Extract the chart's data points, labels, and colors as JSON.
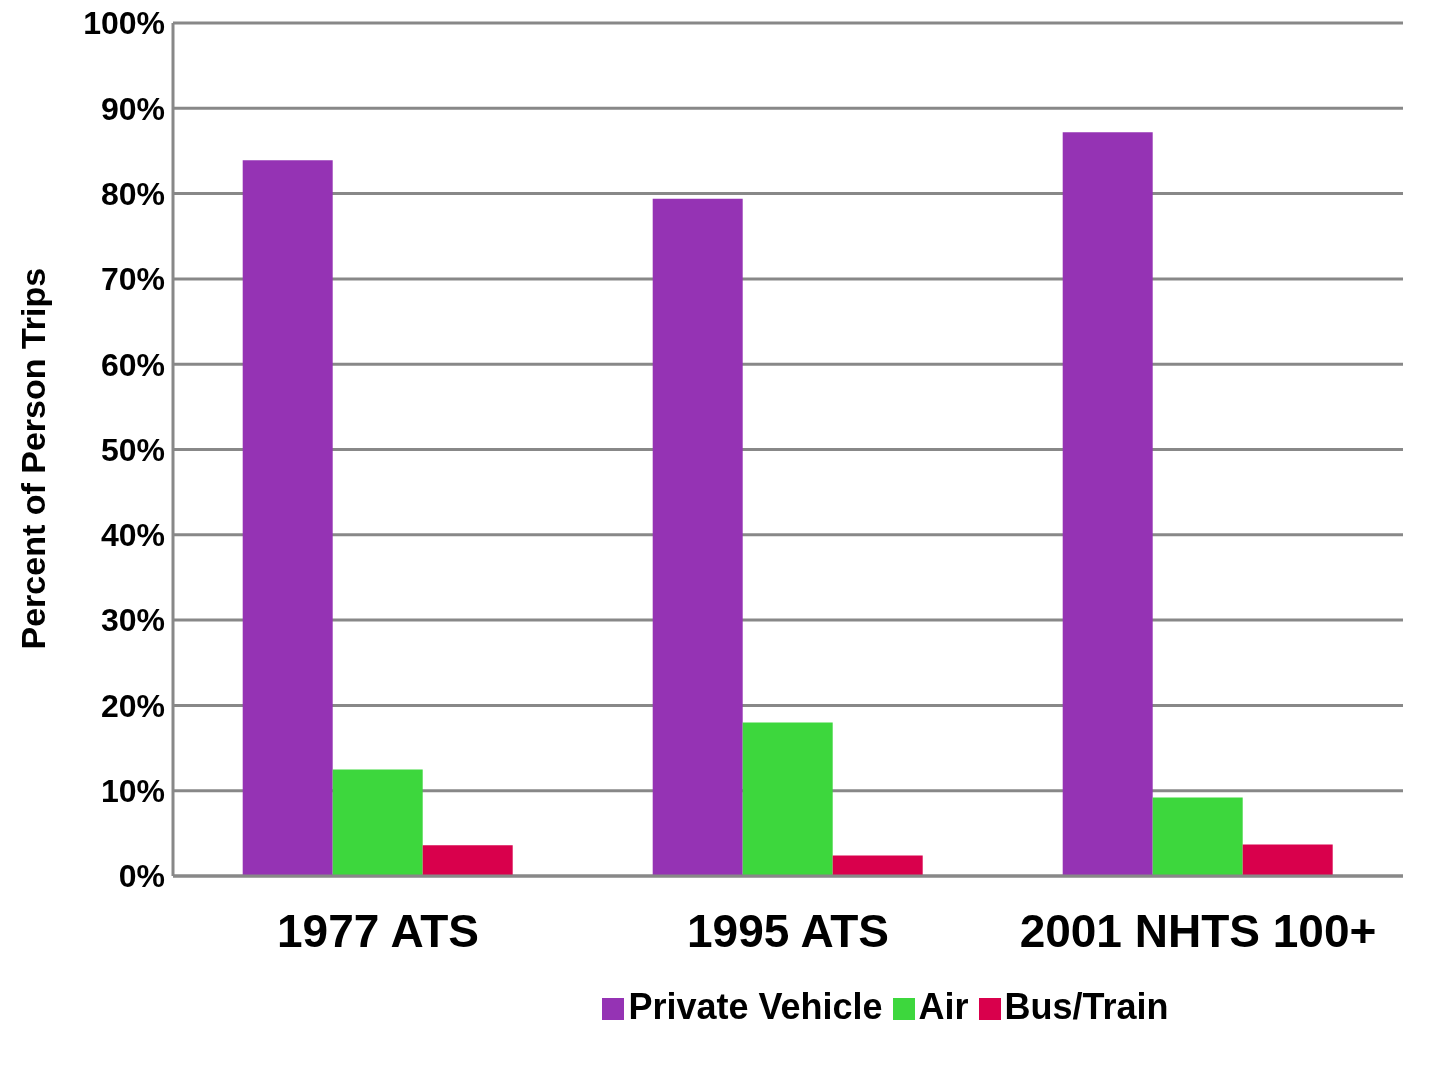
{
  "chart_data": {
    "type": "bar",
    "ylabel": "Percent of Person Trips",
    "categories": [
      "1977 ATS",
      "1995 ATS",
      "2001 NHTS 100+"
    ],
    "series": [
      {
        "name": "Private Vehicle",
        "color": "#9533b4",
        "values": [
          83.9,
          79.4,
          87.2
        ]
      },
      {
        "name": "Air",
        "color": "#3dd73d",
        "values": [
          12.5,
          18.0,
          9.2
        ]
      },
      {
        "name": "Bus/Train",
        "color": "#d9004c",
        "values": [
          3.6,
          2.4,
          3.7
        ]
      }
    ],
    "ylim": [
      0,
      100
    ],
    "yticks": [
      {
        "value": 0,
        "label": "0%"
      },
      {
        "value": 10,
        "label": "10%"
      },
      {
        "value": 20,
        "label": "20%"
      },
      {
        "value": 30,
        "label": "30%"
      },
      {
        "value": 40,
        "label": "40%"
      },
      {
        "value": 50,
        "label": "50%"
      },
      {
        "value": 60,
        "label": "60%"
      },
      {
        "value": 70,
        "label": "70%"
      },
      {
        "value": 80,
        "label": "80%"
      },
      {
        "value": 90,
        "label": "90%"
      },
      {
        "value": 100,
        "label": "100%"
      }
    ],
    "grid": "y",
    "legend": "bottom"
  }
}
